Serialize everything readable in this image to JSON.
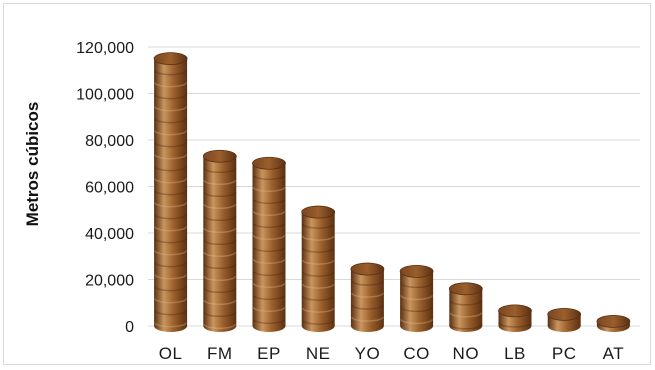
{
  "chart_data": {
    "type": "bar",
    "style": "cylinder",
    "title": "",
    "xlabel": "",
    "ylabel": "Metros cúbicos",
    "categories": [
      "OL",
      "FM",
      "EP",
      "NE",
      "YO",
      "CO",
      "NO",
      "LB",
      "PC",
      "AT"
    ],
    "values": [
      115000,
      73000,
      70000,
      49000,
      24500,
      23500,
      16000,
      6500,
      5000,
      2000
    ],
    "ylim": [
      0,
      120000
    ],
    "yticks": [
      0,
      20000,
      40000,
      60000,
      80000,
      100000,
      120000
    ],
    "ytick_labels": [
      "0",
      "20,000",
      "40,000",
      "60,000",
      "80,000",
      "100,000",
      "120,000"
    ],
    "grid": true,
    "legend": "none",
    "colors": {
      "bar_light": "#c9955e",
      "bar_mid": "#9a5f2c",
      "bar_dark": "#5a3012",
      "bar_top": "#7b4520",
      "grid": "#d9d9d9"
    }
  }
}
